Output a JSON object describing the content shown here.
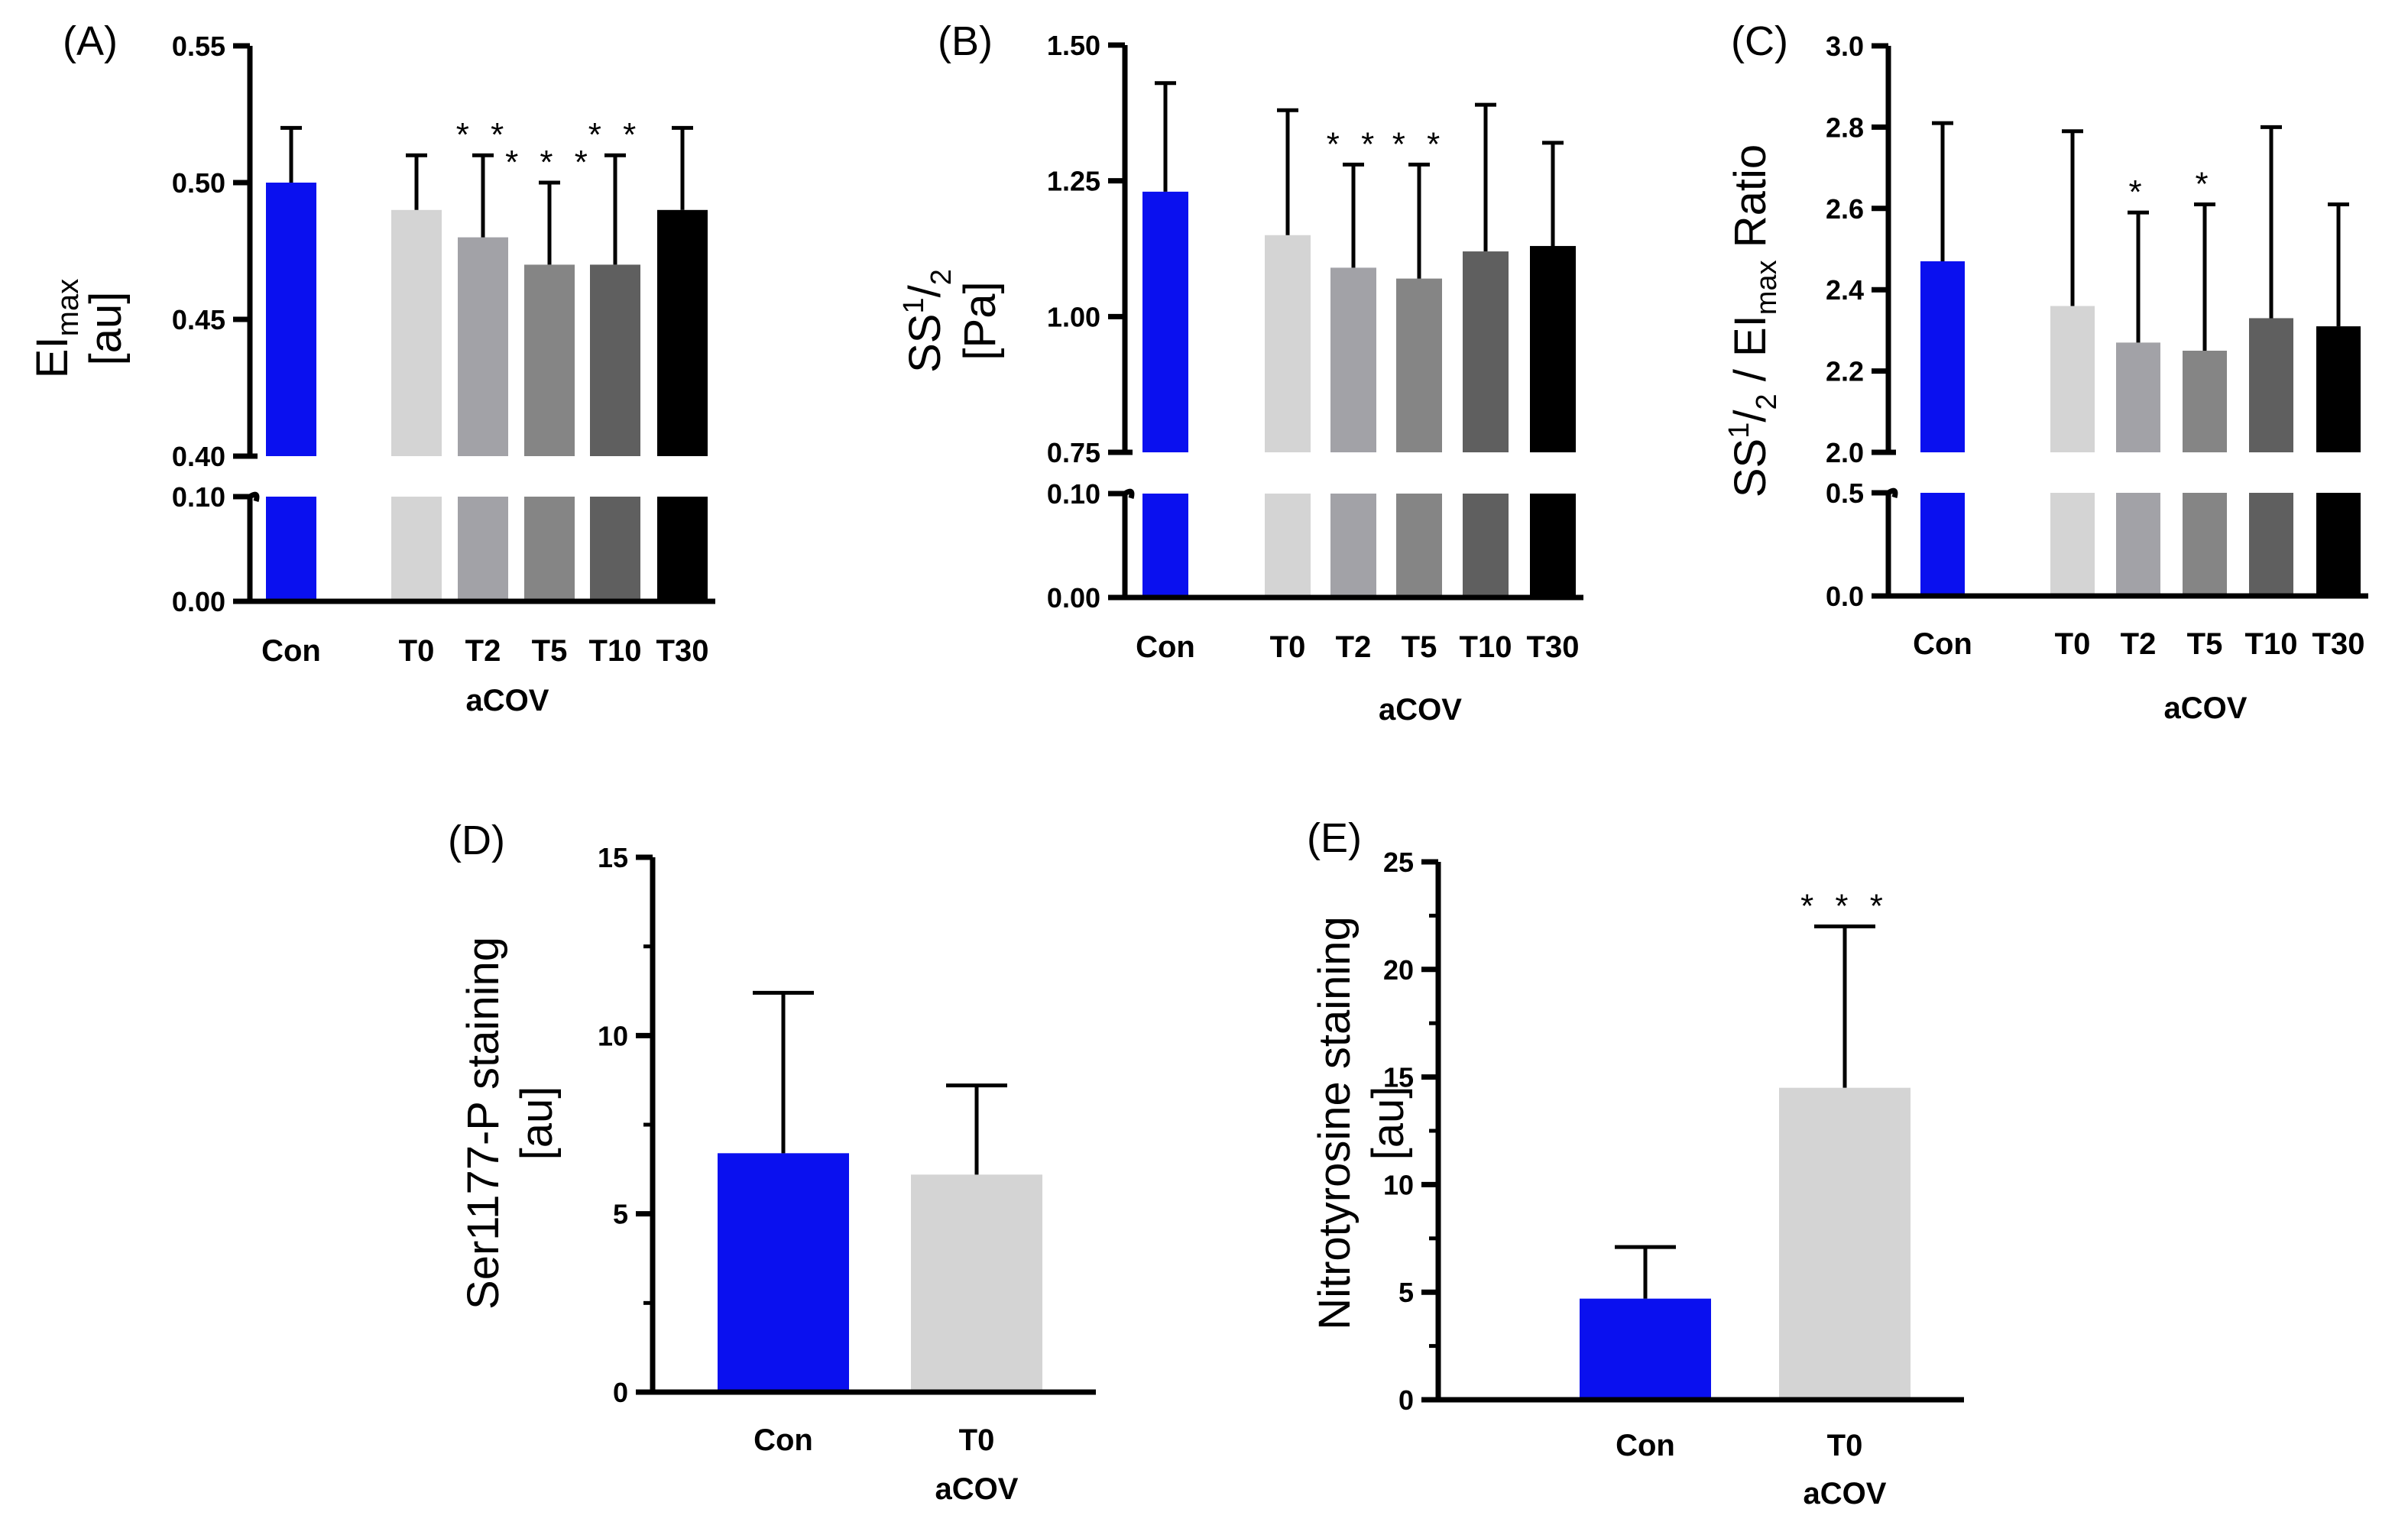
{
  "chart_data": [
    {
      "id": "A",
      "type": "bar",
      "panel_label": "(A)",
      "ylabel_parts": [
        "EI",
        "max",
        "[au]"
      ],
      "group_label": "aCOV",
      "categories": [
        "Con",
        "T0",
        "T2",
        "T5",
        "T10",
        "T30"
      ],
      "values": [
        0.5,
        0.49,
        0.48,
        0.47,
        0.47,
        0.49
      ],
      "errors": [
        0.02,
        0.02,
        0.03,
        0.03,
        0.04,
        0.03
      ],
      "significance": [
        "",
        "",
        "* *",
        "* * *",
        "* *",
        ""
      ],
      "colors": [
        "#0a10ef",
        "#d4d4d4",
        "#a2a2a7",
        "#858585",
        "#5f5f5f",
        "#000000"
      ],
      "broken_axis": true,
      "lower_segment": {
        "range": [
          0,
          0.1
        ],
        "ticks": [
          "0.00",
          "0.10"
        ]
      },
      "upper_segment": {
        "range": [
          0.4,
          0.55
        ],
        "ticks": [
          "0.40",
          "0.45",
          "0.50",
          "0.55"
        ]
      }
    },
    {
      "id": "B",
      "type": "bar",
      "panel_label": "(B)",
      "ylabel_parts": [
        "SS",
        "1",
        "/",
        "2",
        "[Pa]"
      ],
      "group_label": "aCOV",
      "categories": [
        "Con",
        "T0",
        "T2",
        "T5",
        "T10",
        "T30"
      ],
      "values": [
        1.23,
        1.15,
        1.09,
        1.07,
        1.12,
        1.13
      ],
      "errors": [
        0.2,
        0.23,
        0.19,
        0.21,
        0.27,
        0.19
      ],
      "significance": [
        "",
        "",
        "* *",
        "* *",
        "",
        ""
      ],
      "colors": [
        "#0a10ef",
        "#d4d4d4",
        "#a2a2a7",
        "#858585",
        "#5f5f5f",
        "#000000"
      ],
      "broken_axis": true,
      "lower_segment": {
        "range": [
          0,
          0.1
        ],
        "ticks": [
          "0.00",
          "0.10"
        ]
      },
      "upper_segment": {
        "range": [
          0.75,
          1.5
        ],
        "ticks": [
          "0.75",
          "1.00",
          "1.25",
          "1.50"
        ]
      }
    },
    {
      "id": "C",
      "type": "bar",
      "panel_label": "(C)",
      "ylabel_parts": [
        "SS",
        "1",
        "/",
        "2",
        " / EI",
        "max",
        " Ratio"
      ],
      "group_label": "aCOV",
      "categories": [
        "Con",
        "T0",
        "T2",
        "T5",
        "T10",
        "T30"
      ],
      "values": [
        2.47,
        2.36,
        2.27,
        2.25,
        2.33,
        2.31
      ],
      "errors": [
        0.34,
        0.43,
        0.32,
        0.36,
        0.47,
        0.3
      ],
      "significance": [
        "",
        "",
        "*",
        "*",
        "",
        ""
      ],
      "colors": [
        "#0a10ef",
        "#d4d4d4",
        "#a2a2a7",
        "#858585",
        "#5f5f5f",
        "#000000"
      ],
      "broken_axis": true,
      "lower_segment": {
        "range": [
          0,
          0.5
        ],
        "ticks": [
          "0.0",
          "0.5"
        ]
      },
      "upper_segment": {
        "range": [
          2.0,
          3.0
        ],
        "ticks": [
          "2.0",
          "2.2",
          "2.4",
          "2.6",
          "2.8",
          "3.0"
        ]
      }
    },
    {
      "id": "D",
      "type": "bar",
      "panel_label": "(D)",
      "ylabel_parts": [
        "Ser1177-P staining",
        "[au]"
      ],
      "group_label": "aCOV",
      "categories": [
        "Con",
        "T0"
      ],
      "values": [
        6.7,
        6.1
      ],
      "errors": [
        4.5,
        2.5
      ],
      "significance": [
        "",
        ""
      ],
      "colors": [
        "#0a10ef",
        "#d4d4d4"
      ],
      "broken_axis": false,
      "ylim": [
        0,
        15
      ],
      "ticks": [
        "0",
        "5",
        "10",
        "15"
      ]
    },
    {
      "id": "E",
      "type": "bar",
      "panel_label": "(E)",
      "ylabel_parts": [
        "Nitrotyrosine staining",
        "[au]"
      ],
      "group_label": "aCOV",
      "categories": [
        "Con",
        "T0"
      ],
      "values": [
        4.7,
        14.5
      ],
      "errors": [
        2.4,
        7.5
      ],
      "significance": [
        "",
        "* * *"
      ],
      "colors": [
        "#0a10ef",
        "#d4d4d4"
      ],
      "broken_axis": false,
      "ylim": [
        0,
        25
      ],
      "ticks": [
        "0",
        "5",
        "10",
        "15",
        "20",
        "25"
      ]
    }
  ]
}
